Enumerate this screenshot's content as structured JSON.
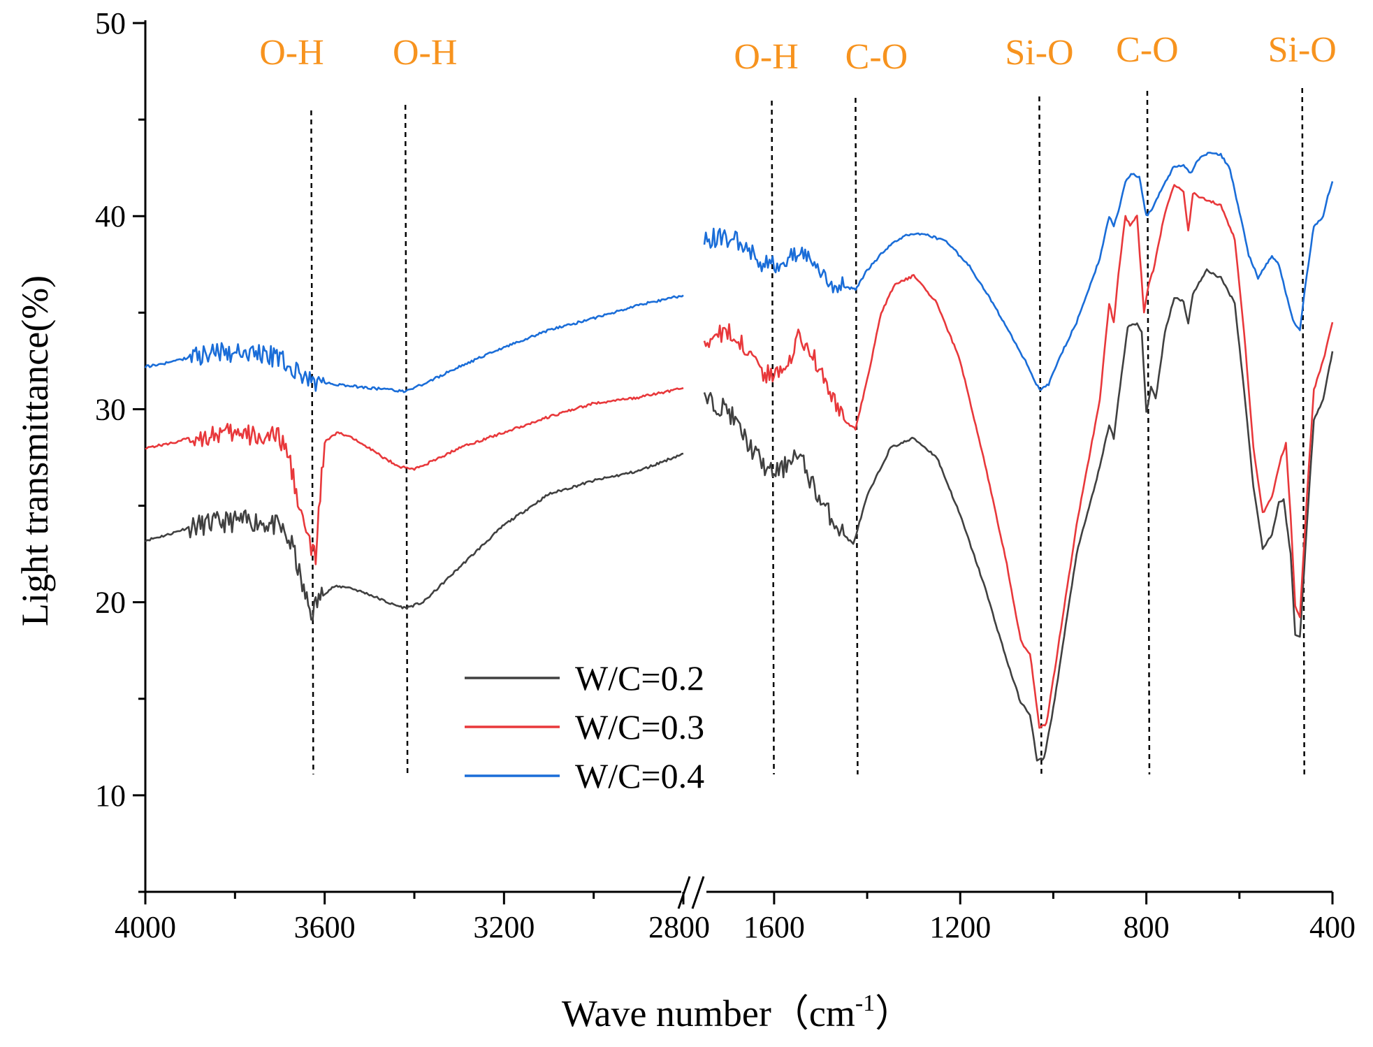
{
  "chart_data": {
    "type": "line",
    "title": "",
    "xlabel": "Wave number（cm",
    "xlabel_sup": "-1",
    "xlabel_end": "）",
    "ylabel": "Light transmittance(%)",
    "ylim": [
      5,
      50
    ],
    "y_ticks": [
      10,
      20,
      30,
      40,
      50
    ],
    "x_segments": [
      {
        "range": [
          4000,
          2800
        ],
        "ticks": [
          4000,
          3600,
          3200,
          2800
        ]
      },
      {
        "range": [
          1750,
          400
        ],
        "ticks": [
          1600,
          1200,
          800,
          400
        ]
      }
    ],
    "x_break": true,
    "band_labels": [
      {
        "text": "O-H",
        "x": 3630
      },
      {
        "text": "O-H",
        "x": 3420
      },
      {
        "text": "O-H",
        "x": 1605
      },
      {
        "text": "C-O",
        "x": 1425
      },
      {
        "text": "Si-O",
        "x": 1030
      },
      {
        "text": "C-O",
        "x": 798
      },
      {
        "text": "Si-O",
        "x": 465
      }
    ],
    "legend": {
      "position": "center-bottom",
      "entries": [
        "W/C=0.2",
        "W/C=0.3",
        "W/C=0.4"
      ]
    },
    "series": [
      {
        "name": "W/C=0.2",
        "color": "#404040",
        "segments": [
          [
            [
              4000,
              23.2
            ],
            [
              3950,
              23.5
            ],
            [
              3900,
              23.9
            ],
            [
              3850,
              24.1
            ],
            [
              3800,
              24.2
            ],
            [
              3750,
              24.2
            ],
            [
              3700,
              23.9
            ],
            [
              3670,
              22.8
            ],
            [
              3650,
              20.8
            ],
            [
              3630,
              19.4
            ],
            [
              3610,
              20.3
            ],
            [
              3580,
              20.8
            ],
            [
              3550,
              20.8
            ],
            [
              3500,
              20.4
            ],
            [
              3450,
              19.9
            ],
            [
              3420,
              19.7
            ],
            [
              3380,
              20.0
            ],
            [
              3300,
              21.8
            ],
            [
              3200,
              24.0
            ],
            [
              3100,
              25.6
            ],
            [
              3000,
              26.3
            ],
            [
              2900,
              26.8
            ],
            [
              2800,
              27.7
            ]
          ],
          [
            [
              1750,
              30.5
            ],
            [
              1700,
              30.0
            ],
            [
              1650,
              28.0
            ],
            [
              1610,
              26.7
            ],
            [
              1580,
              26.9
            ],
            [
              1560,
              27.7
            ],
            [
              1540,
              27.3
            ],
            [
              1500,
              25.2
            ],
            [
              1450,
              23.5
            ],
            [
              1430,
              23.0
            ],
            [
              1400,
              25.5
            ],
            [
              1350,
              28.0
            ],
            [
              1300,
              28.5
            ],
            [
              1250,
              27.5
            ],
            [
              1200,
              24.5
            ],
            [
              1150,
              21.0
            ],
            [
              1100,
              17.0
            ],
            [
              1070,
              14.8
            ],
            [
              1050,
              14.2
            ],
            [
              1035,
              11.8
            ],
            [
              1020,
              11.9
            ],
            [
              1000,
              14.5
            ],
            [
              950,
              22.5
            ],
            [
              900,
              27.0
            ],
            [
              880,
              29.2
            ],
            [
              870,
              28.5
            ],
            [
              860,
              30.5
            ],
            [
              840,
              34.3
            ],
            [
              820,
              34.4
            ],
            [
              810,
              34.0
            ],
            [
              800,
              29.8
            ],
            [
              790,
              31.2
            ],
            [
              780,
              30.5
            ],
            [
              760,
              34.0
            ],
            [
              740,
              35.8
            ],
            [
              720,
              35.6
            ],
            [
              710,
              34.4
            ],
            [
              700,
              36.0
            ],
            [
              670,
              37.2
            ],
            [
              640,
              36.8
            ],
            [
              610,
              35.5
            ],
            [
              590,
              31.0
            ],
            [
              570,
              26.0
            ],
            [
              550,
              22.8
            ],
            [
              530,
              23.5
            ],
            [
              515,
              25.2
            ],
            [
              505,
              25.3
            ],
            [
              490,
              22.5
            ],
            [
              480,
              18.3
            ],
            [
              470,
              18.2
            ],
            [
              455,
              24.0
            ],
            [
              440,
              29.5
            ],
            [
              420,
              30.5
            ],
            [
              400,
              33.0
            ]
          ]
        ]
      },
      {
        "name": "W/C=0.3",
        "color": "#e8383b",
        "segments": [
          [
            [
              4000,
              28.0
            ],
            [
              3950,
              28.2
            ],
            [
              3900,
              28.5
            ],
            [
              3850,
              28.7
            ],
            [
              3800,
              28.7
            ],
            [
              3750,
              28.6
            ],
            [
              3700,
              28.5
            ],
            [
              3680,
              27.5
            ],
            [
              3660,
              25.5
            ],
            [
              3645,
              23.8
            ],
            [
              3630,
              22.8
            ],
            [
              3620,
              22.3
            ],
            [
              3610,
              25.5
            ],
            [
              3600,
              28.3
            ],
            [
              3570,
              28.8
            ],
            [
              3520,
              28.3
            ],
            [
              3470,
              27.5
            ],
            [
              3430,
              27.0
            ],
            [
              3400,
              26.9
            ],
            [
              3350,
              27.4
            ],
            [
              3300,
              28.0
            ],
            [
              3200,
              28.8
            ],
            [
              3100,
              29.6
            ],
            [
              3000,
              30.3
            ],
            [
              2900,
              30.6
            ],
            [
              2800,
              31.1
            ]
          ],
          [
            [
              1750,
              33.5
            ],
            [
              1700,
              34.0
            ],
            [
              1650,
              33.0
            ],
            [
              1620,
              31.7
            ],
            [
              1590,
              32.0
            ],
            [
              1560,
              33.0
            ],
            [
              1545,
              33.8
            ],
            [
              1520,
              33.0
            ],
            [
              1490,
              31.5
            ],
            [
              1460,
              29.8
            ],
            [
              1440,
              29.2
            ],
            [
              1425,
              29.0
            ],
            [
              1400,
              31.5
            ],
            [
              1370,
              35.0
            ],
            [
              1340,
              36.5
            ],
            [
              1300,
              36.9
            ],
            [
              1250,
              35.5
            ],
            [
              1200,
              32.5
            ],
            [
              1150,
              27.5
            ],
            [
              1100,
              22.0
            ],
            [
              1070,
              18.0
            ],
            [
              1050,
              17.3
            ],
            [
              1040,
              15.5
            ],
            [
              1030,
              13.5
            ],
            [
              1015,
              13.7
            ],
            [
              1000,
              16.0
            ],
            [
              950,
              24.0
            ],
            [
              900,
              30.5
            ],
            [
              880,
              35.5
            ],
            [
              870,
              34.5
            ],
            [
              860,
              37.0
            ],
            [
              845,
              40.0
            ],
            [
              835,
              39.5
            ],
            [
              820,
              40.0
            ],
            [
              805,
              35.0
            ],
            [
              795,
              36.5
            ],
            [
              785,
              37.2
            ],
            [
              760,
              40.2
            ],
            [
              740,
              41.6
            ],
            [
              720,
              41.3
            ],
            [
              710,
              39.2
            ],
            [
              700,
              41.2
            ],
            [
              670,
              40.8
            ],
            [
              640,
              40.6
            ],
            [
              610,
              38.8
            ],
            [
              590,
              34.0
            ],
            [
              570,
              28.0
            ],
            [
              550,
              24.6
            ],
            [
              530,
              25.5
            ],
            [
              510,
              27.5
            ],
            [
              500,
              28.2
            ],
            [
              490,
              24.5
            ],
            [
              480,
              19.8
            ],
            [
              470,
              19.2
            ],
            [
              455,
              25.5
            ],
            [
              440,
              31.0
            ],
            [
              420,
              32.5
            ],
            [
              400,
              34.5
            ]
          ]
        ]
      },
      {
        "name": "W/C=0.4",
        "color": "#1a6dd8",
        "segments": [
          [
            [
              4000,
              32.2
            ],
            [
              3950,
              32.4
            ],
            [
              3900,
              32.7
            ],
            [
              3850,
              32.9
            ],
            [
              3800,
              33.0
            ],
            [
              3750,
              32.9
            ],
            [
              3700,
              32.6
            ],
            [
              3650,
              31.7
            ],
            [
              3620,
              31.4
            ],
            [
              3580,
              31.3
            ],
            [
              3540,
              31.2
            ],
            [
              3500,
              31.1
            ],
            [
              3450,
              31.0
            ],
            [
              3420,
              30.9
            ],
            [
              3380,
              31.3
            ],
            [
              3300,
              32.2
            ],
            [
              3200,
              33.2
            ],
            [
              3100,
              34.1
            ],
            [
              3000,
              34.7
            ],
            [
              2900,
              35.4
            ],
            [
              2800,
              35.9
            ]
          ],
          [
            [
              1750,
              38.8
            ],
            [
              1700,
              38.9
            ],
            [
              1660,
              38.5
            ],
            [
              1630,
              37.6
            ],
            [
              1600,
              37.5
            ],
            [
              1570,
              37.7
            ],
            [
              1550,
              38.2
            ],
            [
              1530,
              37.8
            ],
            [
              1500,
              36.9
            ],
            [
              1470,
              36.5
            ],
            [
              1440,
              36.3
            ],
            [
              1425,
              36.2
            ],
            [
              1400,
              37.2
            ],
            [
              1360,
              38.3
            ],
            [
              1320,
              39.0
            ],
            [
              1280,
              39.1
            ],
            [
              1230,
              38.7
            ],
            [
              1180,
              37.4
            ],
            [
              1130,
              35.5
            ],
            [
              1090,
              33.8
            ],
            [
              1060,
              32.5
            ],
            [
              1040,
              31.5
            ],
            [
              1030,
              31.0
            ],
            [
              1010,
              31.3
            ],
            [
              990,
              32.5
            ],
            [
              950,
              34.5
            ],
            [
              900,
              37.8
            ],
            [
              880,
              40.0
            ],
            [
              870,
              39.5
            ],
            [
              860,
              40.3
            ],
            [
              845,
              41.8
            ],
            [
              830,
              42.2
            ],
            [
              815,
              42.0
            ],
            [
              800,
              40.0
            ],
            [
              785,
              40.5
            ],
            [
              765,
              41.5
            ],
            [
              740,
              42.6
            ],
            [
              720,
              42.6
            ],
            [
              705,
              42.2
            ],
            [
              690,
              42.9
            ],
            [
              665,
              43.3
            ],
            [
              640,
              43.2
            ],
            [
              620,
              42.4
            ],
            [
              600,
              40.2
            ],
            [
              580,
              38.0
            ],
            [
              560,
              36.8
            ],
            [
              545,
              37.4
            ],
            [
              530,
              37.9
            ],
            [
              515,
              37.5
            ],
            [
              500,
              36.0
            ],
            [
              485,
              34.6
            ],
            [
              470,
              34.1
            ],
            [
              455,
              37.0
            ],
            [
              440,
              39.5
            ],
            [
              420,
              40.0
            ],
            [
              410,
              41.0
            ],
            [
              400,
              41.8
            ]
          ]
        ]
      }
    ]
  }
}
